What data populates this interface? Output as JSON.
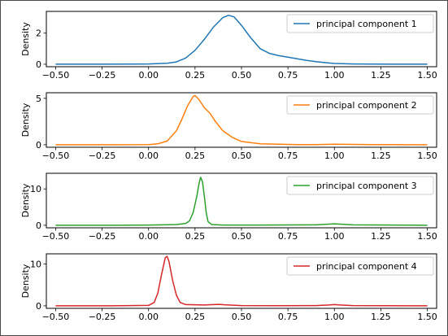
{
  "chart_data": [
    {
      "type": "line",
      "series": [
        {
          "name": "principal component 1",
          "color": "#1f77b4"
        }
      ],
      "x": [
        -0.5,
        -0.3,
        -0.1,
        0.0,
        0.1,
        0.15,
        0.2,
        0.25,
        0.3,
        0.35,
        0.4,
        0.43,
        0.46,
        0.5,
        0.55,
        0.6,
        0.65,
        0.7,
        0.75,
        0.8,
        0.85,
        0.9,
        0.95,
        1.0,
        1.1,
        1.2,
        1.3,
        1.5
      ],
      "y": [
        0.0,
        0.0,
        0.01,
        0.02,
        0.06,
        0.15,
        0.4,
        0.9,
        1.6,
        2.4,
        3.0,
        3.15,
        3.05,
        2.5,
        1.7,
        1.0,
        0.7,
        0.55,
        0.45,
        0.35,
        0.25,
        0.17,
        0.1,
        0.05,
        0.02,
        0.01,
        0.0,
        0.0
      ],
      "xlabel": "",
      "ylabel": "Density",
      "xlim": [
        -0.55,
        1.55
      ],
      "ylim": [
        -0.16,
        3.4
      ],
      "xticks": [
        "−0.50",
        "−0.25",
        "0.00",
        "0.25",
        "0.50",
        "0.75",
        "1.00",
        "1.25",
        "1.50"
      ],
      "xtick_values": [
        -0.5,
        -0.25,
        0.0,
        0.25,
        0.5,
        0.75,
        1.0,
        1.25,
        1.5
      ],
      "yticks": [
        "0",
        "2"
      ],
      "ytick_values": [
        0,
        2
      ],
      "legend_position": "top-right"
    },
    {
      "type": "line",
      "series": [
        {
          "name": "principal component 2",
          "color": "#ff7f0e"
        }
      ],
      "x": [
        -0.5,
        -0.2,
        0.0,
        0.05,
        0.1,
        0.15,
        0.18,
        0.21,
        0.24,
        0.25,
        0.27,
        0.3,
        0.33,
        0.36,
        0.4,
        0.45,
        0.5,
        0.6,
        0.7,
        0.8,
        0.9,
        1.0,
        1.2,
        1.5
      ],
      "y": [
        0.0,
        0.0,
        0.02,
        0.1,
        0.4,
        1.5,
        2.8,
        4.2,
        5.2,
        5.3,
        4.9,
        4.0,
        3.4,
        2.5,
        1.5,
        0.8,
        0.35,
        0.1,
        0.05,
        0.02,
        0.02,
        0.05,
        0.01,
        0.0
      ],
      "xlabel": "",
      "ylabel": "Density",
      "xlim": [
        -0.55,
        1.55
      ],
      "ylim": [
        -0.27,
        5.6
      ],
      "xticks": [
        "−0.50",
        "−0.25",
        "0.00",
        "0.25",
        "0.50",
        "0.75",
        "1.00",
        "1.25",
        "1.50"
      ],
      "xtick_values": [
        -0.5,
        -0.25,
        0.0,
        0.25,
        0.5,
        0.75,
        1.0,
        1.25,
        1.5
      ],
      "yticks": [
        "0",
        "5"
      ],
      "ytick_values": [
        0,
        5
      ],
      "legend_position": "top-right"
    },
    {
      "type": "line",
      "series": [
        {
          "name": "principal component 3",
          "color": "#2ca02c"
        }
      ],
      "x": [
        -0.5,
        -0.2,
        0.0,
        0.1,
        0.15,
        0.2,
        0.22,
        0.24,
        0.26,
        0.27,
        0.28,
        0.29,
        0.3,
        0.31,
        0.32,
        0.34,
        0.4,
        0.6,
        0.9,
        0.97,
        1.0,
        1.03,
        1.1,
        1.5
      ],
      "y": [
        0.0,
        0.0,
        0.05,
        0.15,
        0.2,
        0.5,
        1.2,
        3.5,
        8.0,
        11.0,
        13.2,
        12.0,
        8.0,
        3.5,
        1.0,
        0.2,
        0.05,
        0.05,
        0.1,
        0.3,
        0.4,
        0.3,
        0.1,
        0.0
      ],
      "xlabel": "",
      "ylabel": "Density",
      "xlim": [
        -0.55,
        1.55
      ],
      "ylim": [
        -0.7,
        14.3
      ],
      "xticks": [
        "−0.50",
        "−0.25",
        "0.00",
        "0.25",
        "0.50",
        "0.75",
        "1.00",
        "1.25",
        "1.50"
      ],
      "xtick_values": [
        -0.5,
        -0.25,
        0.0,
        0.25,
        0.5,
        0.75,
        1.0,
        1.25,
        1.5
      ],
      "yticks": [
        "0",
        "10"
      ],
      "ytick_values": [
        0,
        10
      ],
      "legend_position": "top-right"
    },
    {
      "type": "line",
      "series": [
        {
          "name": "principal component 4",
          "color": "#d62728"
        }
      ],
      "x": [
        -0.5,
        -0.2,
        0.0,
        0.03,
        0.05,
        0.07,
        0.09,
        0.1,
        0.11,
        0.13,
        0.15,
        0.17,
        0.2,
        0.3,
        0.35,
        0.38,
        0.41,
        0.5,
        0.7,
        0.9,
        0.97,
        1.0,
        1.03,
        1.1,
        1.5
      ],
      "y": [
        0.0,
        0.0,
        0.1,
        0.8,
        3.0,
        7.5,
        11.5,
        11.8,
        10.5,
        6.0,
        2.5,
        0.8,
        0.3,
        0.2,
        0.3,
        0.35,
        0.25,
        0.05,
        0.02,
        0.05,
        0.2,
        0.3,
        0.2,
        0.05,
        0.0
      ],
      "xlabel": "",
      "ylabel": "Density",
      "xlim": [
        -0.55,
        1.55
      ],
      "ylim": [
        -0.6,
        12.4
      ],
      "xticks": [
        "−0.50",
        "−0.25",
        "0.00",
        "0.25",
        "0.50",
        "0.75",
        "1.00",
        "1.25",
        "1.50"
      ],
      "xtick_values": [
        -0.5,
        -0.25,
        0.0,
        0.25,
        0.5,
        0.75,
        1.0,
        1.25,
        1.5
      ],
      "yticks": [
        "0",
        "10"
      ],
      "ytick_values": [
        0,
        10
      ],
      "legend_position": "top-right"
    }
  ]
}
